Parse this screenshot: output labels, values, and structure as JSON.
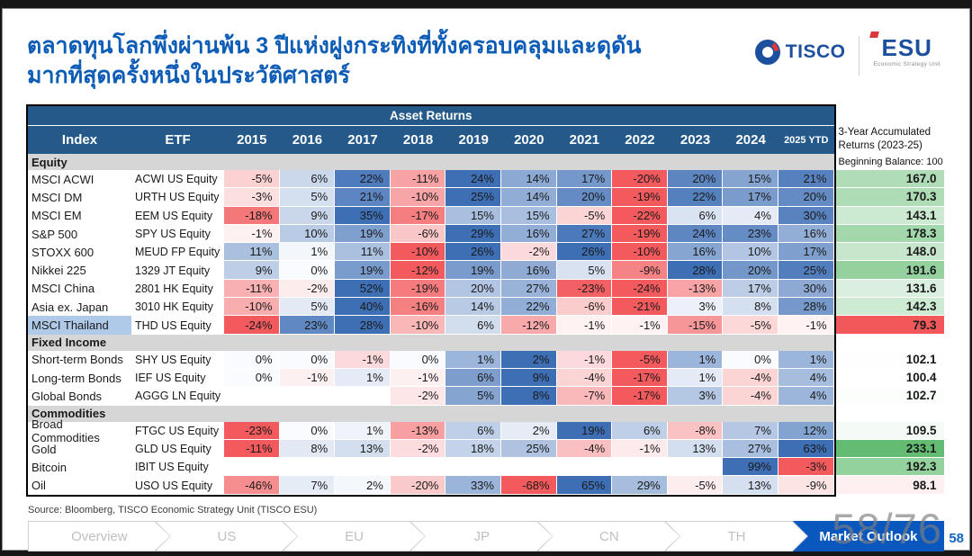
{
  "header": {
    "title_line1": "ตลาดทุนโลกพึ่งผ่านพ้น 3 ปีแห่งฝูงกระทิงที่ทั้งครอบคลุมและดุดัน",
    "title_line2": "มากที่สุดครั้งหนึ่งในประวัติศาสตร์",
    "title_color": "#0d5cb6",
    "logos": {
      "tisco": "TISCO",
      "esu": "ESU",
      "esu_subtitle": "Economic Strategy Unit"
    }
  },
  "chart_data": {
    "type": "table",
    "title": "Asset Returns",
    "columns": [
      "Index",
      "ETF",
      "2015",
      "2016",
      "2017",
      "2018",
      "2019",
      "2020",
      "2021",
      "2022",
      "2023",
      "2024",
      "2025 YTD"
    ],
    "accum_header": [
      "3-Year Accumulated",
      "Returns (2023-25)"
    ],
    "accum_note": "Beginning Balance: 100",
    "accum_baseline": 100,
    "sections": [
      {
        "name": "Equity",
        "rows": [
          {
            "index": "MSCI ACWI",
            "etf": "ACWI US Equity",
            "values": [
              -5,
              6,
              22,
              -11,
              24,
              14,
              17,
              -20,
              20,
              15,
              21
            ],
            "accum": 167.0
          },
          {
            "index": "MSCI DM",
            "etf": "URTH US Equity",
            "values": [
              -3,
              5,
              21,
              -10,
              25,
              14,
              20,
              -19,
              22,
              17,
              20
            ],
            "accum": 170.3
          },
          {
            "index": "MSCI EM",
            "etf": "EEM US Equity",
            "values": [
              -18,
              9,
              35,
              -17,
              15,
              15,
              -5,
              -22,
              6,
              4,
              30
            ],
            "accum": 143.1
          },
          {
            "index": "S&P 500",
            "etf": "SPY US Equity",
            "values": [
              -1,
              10,
              19,
              -6,
              29,
              16,
              27,
              -19,
              24,
              23,
              16
            ],
            "accum": 178.3
          },
          {
            "index": "STOXX 600",
            "etf": "MEUD FP Equity",
            "values": [
              11,
              1,
              11,
              -10,
              26,
              -2,
              26,
              -10,
              16,
              10,
              17
            ],
            "accum": 148.0
          },
          {
            "index": "Nikkei 225",
            "etf": "1329 JT Equity",
            "values": [
              9,
              0,
              19,
              -12,
              19,
              16,
              5,
              -9,
              28,
              20,
              25
            ],
            "accum": 191.6
          },
          {
            "index": "MSCI China",
            "etf": "2801 HK Equity",
            "values": [
              -11,
              -2,
              52,
              -19,
              20,
              27,
              -23,
              -24,
              -13,
              17,
              30
            ],
            "accum": 131.6
          },
          {
            "index": "Asia ex. Japan",
            "etf": "3010 HK Equity",
            "values": [
              -10,
              5,
              40,
              -16,
              14,
              22,
              -6,
              -21,
              3,
              8,
              28
            ],
            "accum": 142.3
          },
          {
            "index": "MSCI Thailand",
            "etf": "THD US Equity",
            "values": [
              -24,
              23,
              28,
              -10,
              6,
              -12,
              -1,
              -1,
              -15,
              -5,
              -1
            ],
            "accum": 79.3,
            "highlight": true
          }
        ]
      },
      {
        "name": "Fixed Income",
        "rows": [
          {
            "index": "Short-term Bonds",
            "etf": "SHY US Equity",
            "values": [
              0,
              0,
              -1,
              0,
              1,
              2,
              -1,
              -5,
              1,
              0,
              1
            ],
            "accum": 102.1
          },
          {
            "index": "Long-term Bonds",
            "etf": "IEF US Equity",
            "values": [
              0,
              -1,
              1,
              -1,
              6,
              9,
              -4,
              -17,
              1,
              -4,
              4
            ],
            "accum": 100.4
          },
          {
            "index": "Global Bonds",
            "etf": "AGGG LN Equity",
            "values": [
              null,
              null,
              null,
              -2,
              5,
              8,
              -7,
              -17,
              3,
              -4,
              4
            ],
            "accum": 102.7
          }
        ]
      },
      {
        "name": "Commodities",
        "rows": [
          {
            "index": "Broad Commodities",
            "etf": "FTGC US Equity",
            "values": [
              -23,
              0,
              1,
              -13,
              6,
              2,
              19,
              6,
              -8,
              7,
              12
            ],
            "accum": 109.5
          },
          {
            "index": "Gold",
            "etf": "GLD US Equity",
            "values": [
              -11,
              8,
              13,
              -2,
              18,
              25,
              -4,
              -1,
              13,
              27,
              63
            ],
            "accum": 233.1
          },
          {
            "index": "Bitcoin",
            "etf": "IBIT US Equity",
            "values": [
              null,
              null,
              null,
              null,
              null,
              null,
              null,
              null,
              null,
              99,
              -3
            ],
            "accum": 192.3
          },
          {
            "index": "Oil",
            "etf": "USO US Equity",
            "values": [
              -46,
              7,
              2,
              -20,
              33,
              -68,
              65,
              29,
              -5,
              13,
              -9
            ],
            "accum": 98.1
          }
        ]
      }
    ],
    "colors": {
      "header_bg": "#24598a",
      "section_bg": "#d6d6d6",
      "positive_full": "#3e6fb5",
      "negative_full": "#f25a5d",
      "accum_green": "#63bc72",
      "accum_red": "#f2575a",
      "highlight": "#afc9e8"
    }
  },
  "footer": {
    "source": "Source: Bloomberg, TISCO Economic Strategy Unit (TISCO ESU)",
    "nav_items": [
      "Overview",
      "US",
      "EU",
      "JP",
      "CN",
      "TH"
    ],
    "nav_active": "Market Outlook",
    "active_color": "#0a58be",
    "watermark": "58/76",
    "page_number": "58"
  }
}
